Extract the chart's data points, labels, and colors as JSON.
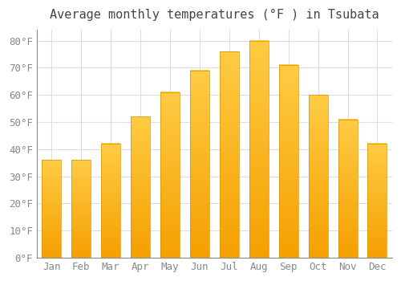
{
  "title": "Average monthly temperatures (°F ) in Tsubata",
  "months": [
    "Jan",
    "Feb",
    "Mar",
    "Apr",
    "May",
    "Jun",
    "Jul",
    "Aug",
    "Sep",
    "Oct",
    "Nov",
    "Dec"
  ],
  "values": [
    36,
    36,
    42,
    52,
    61,
    69,
    76,
    80,
    71,
    60,
    51,
    42
  ],
  "bar_color_top": "#FFC133",
  "bar_color_bottom": "#F5A800",
  "bar_edge_color": "none",
  "background_color": "#FFFFFF",
  "grid_color": "#DDDDDD",
  "ylim": [
    0,
    84
  ],
  "yticks": [
    0,
    10,
    20,
    30,
    40,
    50,
    60,
    70,
    80
  ],
  "title_fontsize": 11,
  "tick_fontsize": 9,
  "tick_color": "#888888",
  "figsize": [
    5.0,
    3.5
  ],
  "dpi": 100
}
